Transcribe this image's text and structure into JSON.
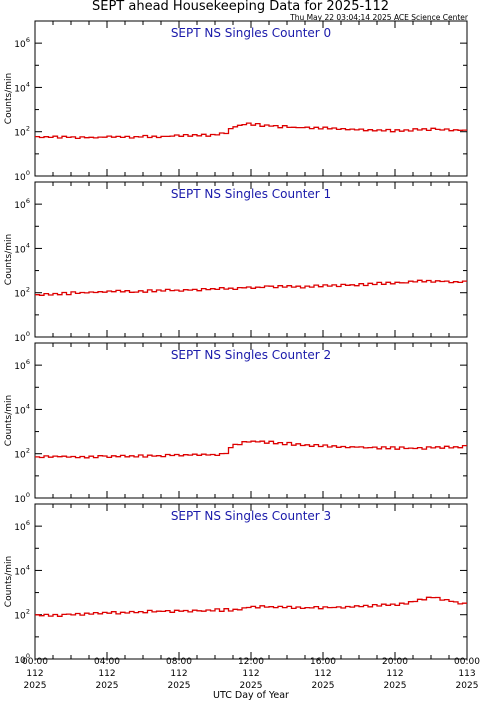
{
  "title": "SEPT ahead Housekeeping Data for 2025-112",
  "timestamp": "Thu May 22 03:04:14 2025 ACE Science Center",
  "xlabel": "UTC Day of Year",
  "ylabel": "Counts/min",
  "colors": {
    "series": "#dd0000",
    "panel_title": "#1a1aaa",
    "axes": "#000000"
  },
  "chart_data": [
    {
      "type": "line",
      "title": "SEPT NS Singles Counter 0",
      "ylabel": "Counts/min",
      "yscale": "log",
      "ylim": [
        1,
        10000000
      ],
      "yticks": [
        {
          "v": 1,
          "e": "0"
        },
        {
          "v": 100,
          "e": "2"
        },
        {
          "v": 10000,
          "e": "4"
        },
        {
          "v": 1000000,
          "e": "6"
        }
      ],
      "xlim": [
        0,
        24
      ],
      "x": [
        0,
        1,
        2,
        3,
        4,
        5,
        6,
        7,
        8,
        9,
        10,
        10.5,
        11,
        11.5,
        12,
        12.5,
        13,
        14,
        15,
        16,
        17,
        18,
        19,
        20,
        21,
        22,
        23,
        24
      ],
      "series": [
        {
          "values": [
            60,
            55,
            58,
            52,
            60,
            58,
            62,
            60,
            68,
            70,
            72,
            85,
            170,
            210,
            220,
            200,
            180,
            160,
            150,
            140,
            130,
            120,
            115,
            110,
            125,
            130,
            120,
            115
          ]
        }
      ]
    },
    {
      "type": "line",
      "title": "SEPT NS Singles Counter 1",
      "ylabel": "Counts/min",
      "yscale": "log",
      "ylim": [
        1,
        10000000
      ],
      "yticks": [
        {
          "v": 1,
          "e": "0"
        },
        {
          "v": 100,
          "e": "2"
        },
        {
          "v": 10000,
          "e": "4"
        },
        {
          "v": 1000000,
          "e": "6"
        }
      ],
      "xlim": [
        0,
        24
      ],
      "x": [
        0,
        1,
        2,
        3,
        4,
        5,
        6,
        7,
        8,
        9,
        10,
        11,
        12,
        13,
        14,
        15,
        16,
        17,
        18,
        19,
        20,
        21,
        22,
        23,
        24
      ],
      "series": [
        {
          "values": [
            75,
            85,
            95,
            100,
            110,
            115,
            120,
            125,
            130,
            135,
            145,
            160,
            175,
            180,
            185,
            190,
            200,
            215,
            235,
            260,
            290,
            320,
            330,
            320,
            300
          ]
        }
      ]
    },
    {
      "type": "line",
      "title": "SEPT NS Singles Counter 2",
      "ylabel": "Counts/min",
      "yscale": "log",
      "ylim": [
        1,
        10000000
      ],
      "yticks": [
        {
          "v": 1,
          "e": "0"
        },
        {
          "v": 100,
          "e": "2"
        },
        {
          "v": 10000,
          "e": "4"
        },
        {
          "v": 1000000,
          "e": "6"
        }
      ],
      "xlim": [
        0,
        24
      ],
      "x": [
        0,
        1,
        2,
        3,
        4,
        5,
        6,
        7,
        8,
        9,
        10,
        10.5,
        11,
        11.5,
        12,
        13,
        14,
        15,
        16,
        17,
        18,
        19,
        20,
        21,
        22,
        23,
        24
      ],
      "series": [
        {
          "values": [
            70,
            75,
            72,
            70,
            75,
            78,
            80,
            82,
            85,
            88,
            90,
            110,
            250,
            330,
            360,
            330,
            280,
            250,
            230,
            210,
            200,
            190,
            180,
            175,
            190,
            200,
            210
          ]
        }
      ]
    },
    {
      "type": "line",
      "title": "SEPT NS Singles Counter 3",
      "ylabel": "Counts/min",
      "yscale": "log",
      "ylim": [
        1,
        10000000
      ],
      "yticks": [
        {
          "v": 1,
          "e": "0"
        },
        {
          "v": 100,
          "e": "2"
        },
        {
          "v": 10000,
          "e": "4"
        },
        {
          "v": 1000000,
          "e": "6"
        }
      ],
      "xlim": [
        0,
        24
      ],
      "x": [
        0,
        1,
        2,
        3,
        4,
        5,
        6,
        7,
        8,
        9,
        10,
        11,
        12,
        13,
        14,
        15,
        16,
        17,
        18,
        19,
        20,
        20.5,
        21,
        21.5,
        22,
        22.5,
        23,
        23.5,
        24
      ],
      "series": [
        {
          "values": [
            90,
            95,
            100,
            110,
            120,
            130,
            140,
            145,
            150,
            155,
            160,
            170,
            230,
            220,
            210,
            205,
            210,
            220,
            240,
            260,
            280,
            320,
            400,
            480,
            600,
            500,
            400,
            350,
            300
          ]
        }
      ]
    }
  ],
  "xticks": [
    {
      "v": 0,
      "l1": "00:00",
      "l2": "112",
      "l3": "2025"
    },
    {
      "v": 4,
      "l1": "04:00",
      "l2": "112",
      "l3": "2025"
    },
    {
      "v": 8,
      "l1": "08:00",
      "l2": "112",
      "l3": "2025"
    },
    {
      "v": 12,
      "l1": "12:00",
      "l2": "112",
      "l3": "2025"
    },
    {
      "v": 16,
      "l1": "16:00",
      "l2": "112",
      "l3": "2025"
    },
    {
      "v": 20,
      "l1": "20:00",
      "l2": "112",
      "l3": "2025"
    },
    {
      "v": 24,
      "l1": "00:00",
      "l2": "113",
      "l3": "2025"
    }
  ]
}
